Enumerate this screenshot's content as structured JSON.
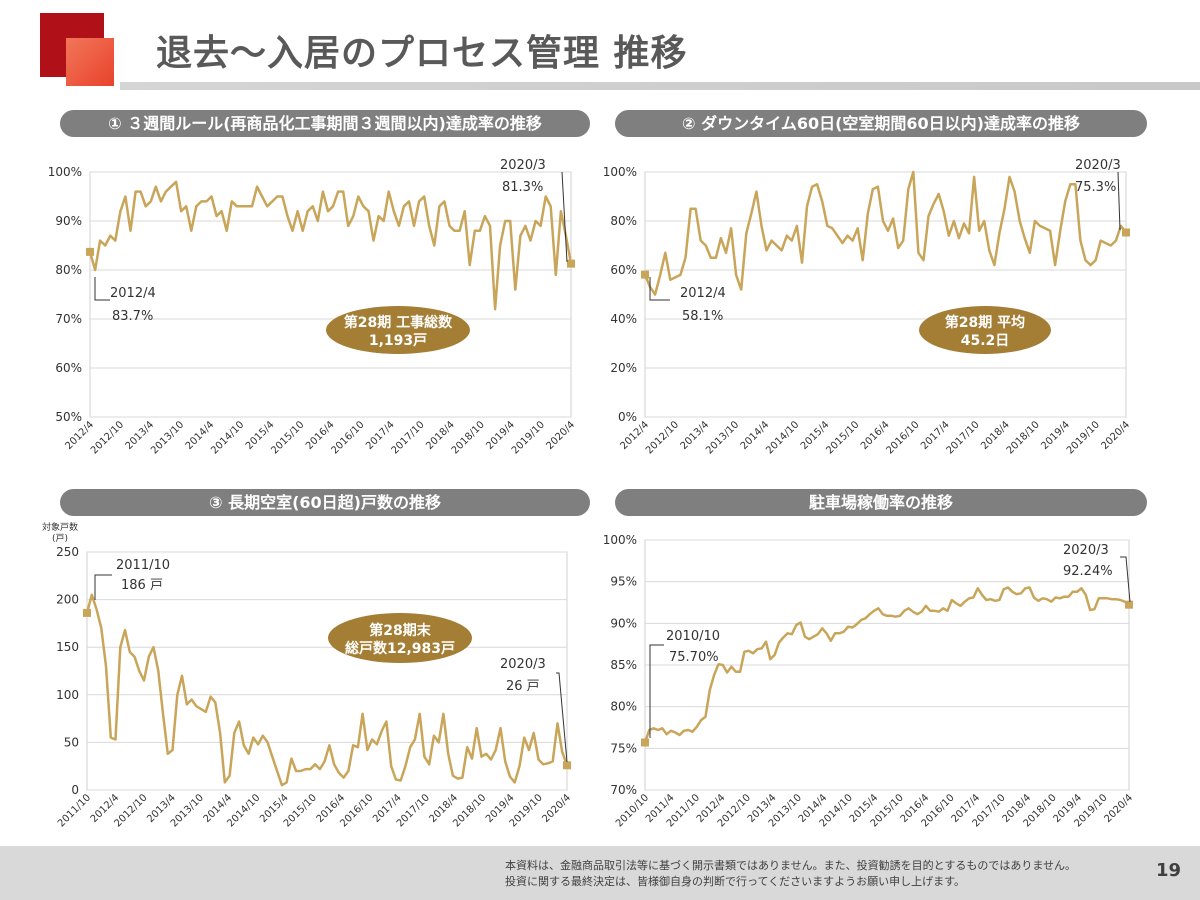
{
  "header": {
    "title": "退去～入居のプロセス管理 推移"
  },
  "footer": {
    "disclaimer_line1": "本資料は、金融商品取引法等に基づく開示書類ではありません。また、投資勧誘を目的とするものではありません。",
    "disclaimer_line2": "投資に関する最終決定は、皆様御自身の判断で行ってくださいますようお願い申し上げます。",
    "page_number": "19"
  },
  "colors": {
    "line": "#c9a55a",
    "marker": "#c9a55a",
    "badge": "#a57e35",
    "panel_title_bg": "#7f7f7f",
    "brand": "#b01118"
  },
  "chart_data": [
    {
      "id": "c1",
      "type": "line",
      "title": "① ３週間ルール(再商品化工事期間３週間以内)達成率の推移",
      "ylim": [
        50,
        100
      ],
      "yticks": [
        50,
        60,
        70,
        80,
        90,
        100
      ],
      "ytick_labels": [
        "50%",
        "60%",
        "70%",
        "80%",
        "90%",
        "100%"
      ],
      "xtick_labels": [
        "2012/4",
        "2012/10",
        "2013/4",
        "2013/10",
        "2014/4",
        "2014/10",
        "2015/4",
        "2015/10",
        "2016/4",
        "2016/10",
        "2017/4",
        "2017/10",
        "2018/4",
        "2018/10",
        "2019/4",
        "2019/10",
        "2020/4"
      ],
      "values": [
        83.7,
        80,
        86,
        85,
        87,
        86,
        92,
        95,
        88,
        96,
        96,
        93,
        94,
        97,
        94,
        96,
        97,
        98,
        92,
        93,
        88,
        93,
        94,
        94,
        95,
        91,
        92,
        88,
        94,
        93,
        93,
        93,
        93,
        97,
        95,
        93,
        94,
        95,
        95,
        91,
        88,
        92,
        88,
        92,
        93,
        90,
        96,
        92,
        93,
        96,
        96,
        89,
        91,
        95,
        93,
        92,
        86,
        91,
        90,
        96,
        92,
        89,
        93,
        94,
        89,
        94,
        95,
        89,
        85,
        93,
        94,
        89,
        88,
        88,
        92,
        81,
        88,
        88,
        91,
        89,
        72,
        85,
        90,
        90,
        76,
        87,
        89,
        86,
        90,
        89,
        95,
        93,
        79,
        92,
        87,
        81.3
      ],
      "start_label": "2012/4",
      "start_value_label": "83.7%",
      "end_label": "2020/3",
      "end_value_label": "81.3%",
      "badge": {
        "line1": "第28期 工事総数",
        "line2": "1,193戸"
      }
    },
    {
      "id": "c2",
      "type": "line",
      "title": "② ダウンタイム60日(空室期間60日以内)達成率の推移",
      "ylim": [
        0,
        100
      ],
      "yticks": [
        0,
        20,
        40,
        60,
        80,
        100
      ],
      "ytick_labels": [
        "0%",
        "20%",
        "40%",
        "60%",
        "80%",
        "100%"
      ],
      "xtick_labels": [
        "2012/4",
        "2012/10",
        "2013/4",
        "2013/10",
        "2014/4",
        "2014/10",
        "2015/4",
        "2015/10",
        "2016/4",
        "2016/10",
        "2017/4",
        "2017/10",
        "2018/4",
        "2018/10",
        "2019/4",
        "2019/10",
        "2020/4"
      ],
      "values": [
        58.1,
        53,
        50,
        58,
        67,
        56,
        57,
        58,
        65,
        85,
        85,
        72,
        70,
        65,
        65,
        73,
        67,
        77,
        58,
        52,
        75,
        83,
        92,
        78,
        68,
        72,
        70,
        68,
        74,
        72,
        78,
        63,
        86,
        94,
        95,
        88,
        78,
        77,
        74,
        71,
        74,
        72,
        77,
        64,
        83,
        93,
        94,
        80,
        76,
        81,
        69,
        72,
        93,
        100,
        67,
        64,
        82,
        87,
        91,
        84,
        74,
        80,
        73,
        79,
        75,
        98,
        76,
        80,
        68,
        62,
        75,
        85,
        98,
        92,
        80,
        73,
        67,
        80,
        78,
        77,
        76,
        62,
        76,
        88,
        95,
        95,
        72,
        64,
        62,
        64,
        72,
        71,
        70,
        72,
        78,
        75.3
      ],
      "start_label": "2012/4",
      "start_value_label": "58.1%",
      "end_label": "2020/3",
      "end_value_label": "75.3%",
      "badge": {
        "line1": "第28期 平均",
        "line2": "45.2日"
      }
    },
    {
      "id": "c3",
      "type": "line",
      "title": "③ 長期空室(60日超)戸数の推移",
      "ylabel_line1": "対象戸数",
      "ylabel_line2": "(戸)",
      "ylim": [
        0,
        250
      ],
      "yticks": [
        0,
        50,
        100,
        150,
        200,
        250
      ],
      "ytick_labels": [
        "0",
        "50",
        "100",
        "150",
        "200",
        "250"
      ],
      "xtick_labels": [
        "2011/10",
        "2012/4",
        "2012/10",
        "2013/4",
        "2013/10",
        "2014/4",
        "2014/10",
        "2015/4",
        "2015/10",
        "2016/4",
        "2016/10",
        "2017/4",
        "2017/10",
        "2018/4",
        "2018/10",
        "2019/4",
        "2019/10",
        "2020/4"
      ],
      "values": [
        186,
        205,
        190,
        170,
        130,
        55,
        53,
        150,
        168,
        145,
        140,
        125,
        115,
        140,
        150,
        125,
        80,
        38,
        42,
        100,
        120,
        90,
        95,
        88,
        85,
        82,
        98,
        92,
        60,
        8,
        15,
        60,
        72,
        47,
        38,
        55,
        48,
        57,
        50,
        35,
        20,
        5,
        8,
        33,
        20,
        20,
        22,
        22,
        27,
        22,
        30,
        47,
        27,
        18,
        13,
        20,
        47,
        45,
        80,
        42,
        53,
        48,
        62,
        72,
        25,
        11,
        10,
        25,
        45,
        53,
        80,
        35,
        27,
        57,
        50,
        80,
        38,
        15,
        12,
        13,
        45,
        33,
        65,
        35,
        38,
        32,
        42,
        65,
        30,
        14,
        8,
        25,
        55,
        42,
        60,
        32,
        27,
        28,
        30,
        70,
        40,
        26
      ],
      "start_label": "2011/10",
      "start_value_label": "186 戸",
      "end_label": "2020/3",
      "end_value_label": "26 戸",
      "badge": {
        "line1": "第28期末",
        "line2": "総戸数12,983戸"
      }
    },
    {
      "id": "c4",
      "type": "line",
      "title": "駐車場稼働率の推移",
      "ylim": [
        70,
        100
      ],
      "yticks": [
        70,
        75,
        80,
        85,
        90,
        95,
        100
      ],
      "ytick_labels": [
        "70%",
        "75%",
        "80%",
        "85%",
        "90%",
        "95%",
        "100%"
      ],
      "xtick_labels": [
        "2010/10",
        "2011/4",
        "2011/10",
        "2012/4",
        "2012/10",
        "2013/4",
        "2013/10",
        "2014/4",
        "2014/10",
        "2015/4",
        "2015/10",
        "2016/4",
        "2016/10",
        "2017/4",
        "2017/10",
        "2018/4",
        "2018/10",
        "2019/4",
        "2019/10",
        "2020/4"
      ],
      "values": [
        75.7,
        77.2,
        77.4,
        77.2,
        77.4,
        76.7,
        77.1,
        76.9,
        76.6,
        77.1,
        77.2,
        77.0,
        77.6,
        78.4,
        78.8,
        82.0,
        83.8,
        85.1,
        85.0,
        84.1,
        84.8,
        84.2,
        84.2,
        86.6,
        86.7,
        86.4,
        86.9,
        87.0,
        87.8,
        85.7,
        86.2,
        87.7,
        88.3,
        88.8,
        88.7,
        89.8,
        90.1,
        88.4,
        88.1,
        88.4,
        88.7,
        89.4,
        88.8,
        87.9,
        88.8,
        88.8,
        89.0,
        89.6,
        89.5,
        89.9,
        90.4,
        90.6,
        91.1,
        91.5,
        91.8,
        91.1,
        90.9,
        90.9,
        90.8,
        90.9,
        91.5,
        91.8,
        91.4,
        91.1,
        91.4,
        92.1,
        91.5,
        91.5,
        91.4,
        91.8,
        91.5,
        92.8,
        92.4,
        92.1,
        92.6,
        93.0,
        93.1,
        94.2,
        93.4,
        92.8,
        92.9,
        92.7,
        92.8,
        94.1,
        94.3,
        93.8,
        93.5,
        93.6,
        94.2,
        94.3,
        93.1,
        92.7,
        93.0,
        92.9,
        92.6,
        93.1,
        93.0,
        93.2,
        93.2,
        93.8,
        93.8,
        94.2,
        93.4,
        91.6,
        91.7,
        93.0,
        93.0,
        93.0,
        92.9,
        92.9,
        92.8,
        92.6,
        92.24
      ],
      "start_label": "2010/10",
      "start_value_label": "75.70%",
      "end_label": "2020/3",
      "end_value_label": "92.24%",
      "badge": null
    }
  ]
}
